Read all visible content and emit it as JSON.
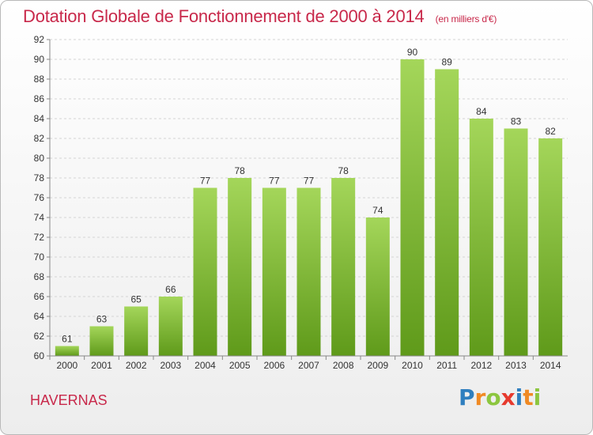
{
  "title": "Dotation Globale de Fonctionnement de 2000 à 2014",
  "subtitle": "(en milliers d'€)",
  "city": "HAVERNAS",
  "logo": {
    "letters": [
      "P",
      "r",
      "o",
      "x",
      "i",
      "t",
      "i"
    ],
    "colors": [
      "#2f7fbf",
      "#f08a24",
      "#8cc63f",
      "#e63a2e",
      "#2f7fbf",
      "#f08a24",
      "#8cc63f"
    ]
  },
  "colors": {
    "bar_top": "#a4d65a",
    "bar_bottom": "#5f9a1a",
    "title": "#c8284a"
  },
  "chart_data": {
    "type": "bar",
    "title": "Dotation Globale de Fonctionnement de 2000 à 2014",
    "categories": [
      "2000",
      "2001",
      "2002",
      "2003",
      "2004",
      "2005",
      "2006",
      "2007",
      "2008",
      "2009",
      "2010",
      "2011",
      "2012",
      "2013",
      "2014"
    ],
    "values": [
      61,
      63,
      65,
      66,
      77,
      78,
      77,
      77,
      78,
      74,
      90,
      89,
      84,
      83,
      82
    ],
    "ylim": [
      60,
      92
    ],
    "yticks": [
      60,
      62,
      64,
      66,
      68,
      70,
      72,
      74,
      76,
      78,
      80,
      82,
      84,
      86,
      88,
      90,
      92
    ],
    "grid": true,
    "legend": "none"
  }
}
